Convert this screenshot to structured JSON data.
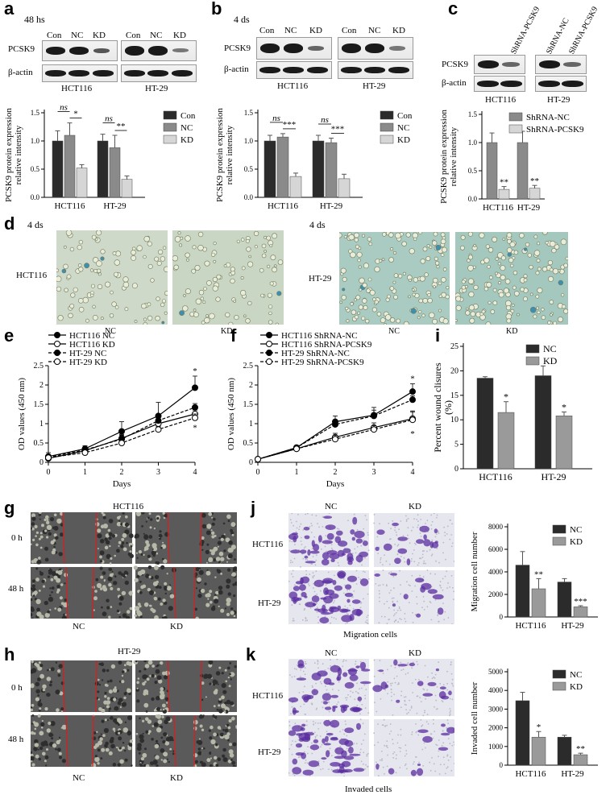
{
  "panels": {
    "a": {
      "label": "a",
      "time": "48 hs",
      "lanes": [
        "Con",
        "NC",
        "KD",
        "Con",
        "NC",
        "KD"
      ],
      "rows": [
        "PCSK9",
        "β-actin"
      ],
      "cells": [
        "HCT116",
        "HT-29"
      ]
    },
    "b": {
      "label": "b",
      "time": "4 ds",
      "lanes": [
        "Con",
        "NC",
        "KD",
        "Con",
        "NC",
        "KD"
      ],
      "rows": [
        "PCSK9",
        "β-actin"
      ],
      "cells": [
        "HCT116",
        "HT-29"
      ]
    },
    "c": {
      "label": "c",
      "lanes": [
        "ShRNA-PCSK9",
        "ShRNA-NC",
        "ShRNA-PCSK9"
      ],
      "rows": [
        "PCSK9",
        "β-actin"
      ],
      "cells": [
        "HCT116",
        "HT-29"
      ]
    },
    "d": {
      "label": "d",
      "time_left": "4 ds",
      "time_right": "4 ds",
      "rows": [
        "HCT116",
        "HT-29"
      ],
      "captions": [
        "NC",
        "KD",
        "NC",
        "KD"
      ]
    },
    "e": {
      "label": "e"
    },
    "f": {
      "label": "f"
    },
    "g": {
      "label": "g",
      "title": "HCT116",
      "rows": [
        "0 h",
        "48 h"
      ],
      "captions": [
        "NC",
        "KD"
      ]
    },
    "h": {
      "label": "h",
      "title": "HT-29",
      "rows": [
        "0 h",
        "48 h"
      ],
      "captions": [
        "NC",
        "KD"
      ]
    },
    "i": {
      "label": "i"
    },
    "j": {
      "label": "j",
      "cols": [
        "NC",
        "KD"
      ],
      "rows": [
        "HCT116",
        "HT-29"
      ],
      "caption": "Migration cells"
    },
    "k": {
      "label": "k",
      "cols": [
        "NC",
        "KD"
      ],
      "rows": [
        "HCT116",
        "HT-29"
      ],
      "caption": "Invaded cells"
    }
  },
  "chart_data": [
    {
      "id": "a",
      "type": "bar",
      "ylabel": "PCSK9 protein expression relative intensity",
      "ylim": [
        0,
        1.5
      ],
      "yticks": [
        "0.0",
        "0.5",
        "1.0",
        "1.5"
      ],
      "categories": [
        "HCT116",
        "HT-29"
      ],
      "legend": [
        "Con",
        "NC",
        "KD"
      ],
      "colors": [
        "#2b2b2b",
        "#8a8a8a",
        "#d6d6d6"
      ],
      "series": [
        {
          "name": "Con",
          "values": [
            1.0,
            1.0
          ],
          "err": [
            0.18,
            0.12
          ]
        },
        {
          "name": "NC",
          "values": [
            1.1,
            0.88
          ],
          "err": [
            0.22,
            0.22
          ]
        },
        {
          "name": "KD",
          "values": [
            0.52,
            0.32
          ],
          "err": [
            0.06,
            0.06
          ]
        }
      ],
      "annotations": [
        {
          "text": "ns",
          "group": 0,
          "pair": "01"
        },
        {
          "text": "*",
          "group": 0,
          "pair": "12"
        },
        {
          "text": "ns",
          "group": 1,
          "pair": "01"
        },
        {
          "text": "**",
          "group": 1,
          "pair": "12"
        }
      ]
    },
    {
      "id": "b",
      "type": "bar",
      "ylabel": "PCSK9 protein expression relative intensity",
      "ylim": [
        0,
        1.5
      ],
      "yticks": [
        "0.0",
        "0.5",
        "1.0",
        "1.5"
      ],
      "categories": [
        "HCT116",
        "HT-29"
      ],
      "legend": [
        "Con",
        "NC",
        "KD"
      ],
      "colors": [
        "#2b2b2b",
        "#8a8a8a",
        "#d6d6d6"
      ],
      "series": [
        {
          "name": "Con",
          "values": [
            1.0,
            1.0
          ],
          "err": [
            0.1,
            0.1
          ]
        },
        {
          "name": "NC",
          "values": [
            1.07,
            0.97
          ],
          "err": [
            0.06,
            0.08
          ]
        },
        {
          "name": "KD",
          "values": [
            0.37,
            0.33
          ],
          "err": [
            0.06,
            0.08
          ]
        }
      ],
      "annotations": [
        {
          "text": "ns",
          "group": 0,
          "pair": "01"
        },
        {
          "text": "***",
          "group": 0,
          "pair": "12"
        },
        {
          "text": "ns",
          "group": 1,
          "pair": "01"
        },
        {
          "text": "***",
          "group": 1,
          "pair": "12"
        }
      ]
    },
    {
      "id": "c",
      "type": "bar",
      "ylabel": "PCSK9 protein expression relative intensity",
      "ylim": [
        0,
        1.5
      ],
      "yticks": [
        "0.0",
        "0.5",
        "1.0",
        "1.5"
      ],
      "categories": [
        "HCT116",
        "HT-29"
      ],
      "legend": [
        "ShRNA-NC",
        "ShRNA-PCSK9"
      ],
      "colors": [
        "#8a8a8a",
        "#d6d6d6"
      ],
      "series": [
        {
          "name": "ShRNA-NC",
          "values": [
            1.0,
            1.0
          ],
          "err": [
            0.17,
            0.2
          ]
        },
        {
          "name": "ShRNA-PCSK9",
          "values": [
            0.17,
            0.19
          ],
          "err": [
            0.05,
            0.05
          ]
        }
      ],
      "annotations": [
        {
          "text": "**",
          "group": 0,
          "bar": 1
        },
        {
          "text": "**",
          "group": 1,
          "bar": 1
        }
      ]
    },
    {
      "id": "e",
      "type": "line",
      "xlabel": "Days",
      "ylabel": "OD values (450 nm)",
      "xlim": [
        0,
        4
      ],
      "ylim": [
        0,
        2.5
      ],
      "xticks": [
        "0",
        "1",
        "2",
        "3",
        "4"
      ],
      "yticks": [
        "0",
        "0.5",
        "1",
        "1.5",
        "2",
        "2.5"
      ],
      "x": [
        0,
        1,
        2,
        3,
        4
      ],
      "series": [
        {
          "name": "HCT116 NC",
          "values": [
            0.15,
            0.35,
            0.8,
            1.2,
            1.93
          ],
          "err": [
            0.1,
            0.08,
            0.25,
            0.35,
            0.3
          ],
          "marker": "filled",
          "dash": false
        },
        {
          "name": "HCT116 KD",
          "values": [
            0.1,
            0.3,
            0.62,
            1.0,
            1.25
          ],
          "err": [
            0.05,
            0.06,
            0.1,
            0.1,
            0.1
          ],
          "marker": "open",
          "dash": false
        },
        {
          "name": "HT-29 NC",
          "values": [
            0.13,
            0.32,
            0.6,
            1.08,
            1.42
          ],
          "err": [
            0.05,
            0.06,
            0.1,
            0.12,
            0.1
          ],
          "marker": "filled",
          "dash": true
        },
        {
          "name": "HT-29 KD",
          "values": [
            0.12,
            0.25,
            0.5,
            0.85,
            1.15
          ],
          "err": [
            0.05,
            0.05,
            0.1,
            0.08,
            0.1
          ],
          "marker": "open",
          "dash": true
        }
      ],
      "annotations": [
        "*",
        "*"
      ]
    },
    {
      "id": "f",
      "type": "line",
      "xlabel": "Days",
      "ylabel": "OD values (450 nm)",
      "xlim": [
        0,
        4
      ],
      "ylim": [
        0,
        2.5
      ],
      "xticks": [
        "0",
        "1",
        "2",
        "3",
        "4"
      ],
      "yticks": [
        "0",
        "0.5",
        "1",
        "1.5",
        "2",
        "2.5"
      ],
      "x": [
        0,
        1,
        2,
        3,
        4
      ],
      "series": [
        {
          "name": "HCT116  ShRNA-NC",
          "values": [
            0.08,
            0.38,
            1.05,
            1.22,
            1.83
          ],
          "err": [
            0.03,
            0.05,
            0.15,
            0.2,
            0.2
          ],
          "marker": "filled",
          "dash": false
        },
        {
          "name": "HCT116  ShRNA-PCSK9",
          "values": [
            0.08,
            0.35,
            0.65,
            0.9,
            1.13
          ],
          "err": [
            0.03,
            0.05,
            0.1,
            0.12,
            0.2
          ],
          "marker": "open",
          "dash": false
        },
        {
          "name": "HT-29  ShRNA-NC",
          "values": [
            0.08,
            0.38,
            0.98,
            1.2,
            1.62
          ],
          "err": [
            0.03,
            0.05,
            0.12,
            0.15,
            0.1
          ],
          "marker": "filled",
          "dash": true
        },
        {
          "name": "HT-29  ShRNA-PCSK9",
          "values": [
            0.08,
            0.35,
            0.6,
            0.85,
            1.1
          ],
          "err": [
            0.03,
            0.05,
            0.1,
            0.1,
            0.2
          ],
          "marker": "open",
          "dash": true
        }
      ],
      "annotations": [
        "*",
        "*"
      ]
    },
    {
      "id": "i",
      "type": "bar",
      "ylabel": "Percent wound clisures (%)",
      "ylim": [
        0,
        25
      ],
      "yticks": [
        "0",
        "5",
        "10",
        "15",
        "20",
        "25"
      ],
      "categories": [
        "HCT116",
        "HT-29"
      ],
      "legend": [
        "NC",
        "KD"
      ],
      "colors": [
        "#2b2b2b",
        "#9a9a9a"
      ],
      "series": [
        {
          "name": "NC",
          "values": [
            18.5,
            19.0
          ],
          "err": [
            0.3,
            2.0
          ]
        },
        {
          "name": "KD",
          "values": [
            11.5,
            10.8
          ],
          "err": [
            2.2,
            0.8
          ]
        }
      ],
      "annotations": [
        {
          "text": "*",
          "group": 0,
          "bar": 1
        },
        {
          "text": "*",
          "group": 1,
          "bar": 1
        }
      ]
    },
    {
      "id": "j",
      "type": "bar",
      "ylabel": "Migration cell number",
      "ylim": [
        0,
        8000
      ],
      "yticks": [
        "0",
        "2000",
        "4000",
        "6000",
        "8000"
      ],
      "categories": [
        "HCT116",
        "HT-29"
      ],
      "legend": [
        "NC",
        "KD"
      ],
      "colors": [
        "#2b2b2b",
        "#9a9a9a"
      ],
      "series": [
        {
          "name": "NC",
          "values": [
            4600,
            3100
          ],
          "err": [
            1200,
            300
          ]
        },
        {
          "name": "KD",
          "values": [
            2500,
            900
          ],
          "err": [
            900,
            100
          ]
        }
      ],
      "annotations": [
        {
          "text": "**",
          "group": 0,
          "bar": 1
        },
        {
          "text": "***",
          "group": 1,
          "bar": 1
        }
      ]
    },
    {
      "id": "k",
      "type": "bar",
      "ylabel": "Invaded cell number",
      "ylim": [
        0,
        5000
      ],
      "yticks": [
        "0",
        "1000",
        "2000",
        "3000",
        "4000",
        "5000"
      ],
      "categories": [
        "HCT116",
        "HT-29"
      ],
      "legend": [
        "NC",
        "KD"
      ],
      "colors": [
        "#2b2b2b",
        "#9a9a9a"
      ],
      "series": [
        {
          "name": "NC",
          "values": [
            3450,
            1500
          ],
          "err": [
            450,
            100
          ]
        },
        {
          "name": "KD",
          "values": [
            1500,
            560
          ],
          "err": [
            300,
            80
          ]
        }
      ],
      "annotations": [
        {
          "text": "*",
          "group": 0,
          "bar": 1
        },
        {
          "text": "**",
          "group": 1,
          "bar": 1
        }
      ]
    }
  ]
}
